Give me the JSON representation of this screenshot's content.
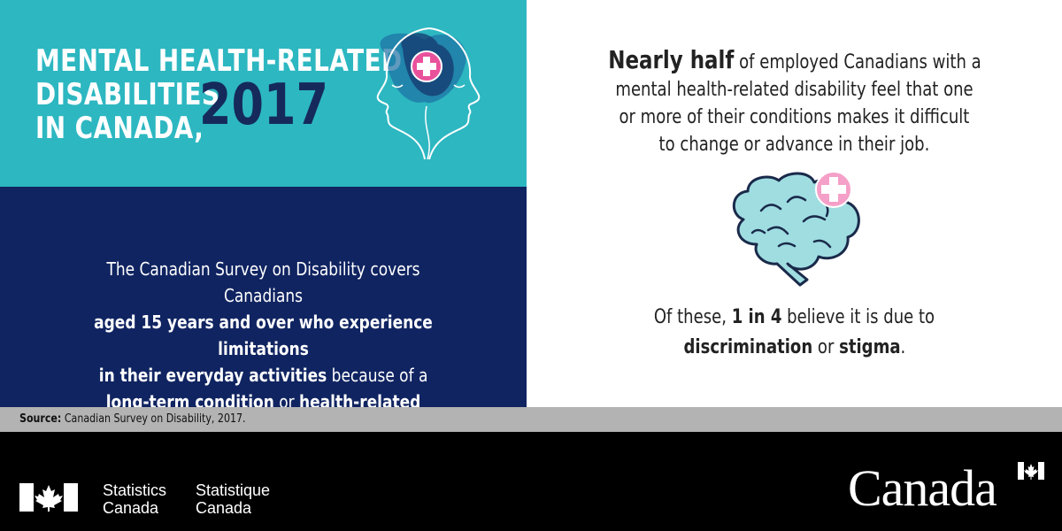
{
  "title": {
    "lines": [
      "MENTAL HEALTH-RELATED",
      "DISABILITIES",
      "IN CANADA,"
    ],
    "year": "2017"
  },
  "survey": {
    "p1": "The Canadian Survey on Disability covers Canadians",
    "b1": "aged 15 years and over who experience limitations",
    "b2": "in their everyday activities",
    "p2": " because of a",
    "b3": "long-term condition",
    "p3": " or ",
    "b4": "health-related problem",
    "p4": "."
  },
  "finding": {
    "bold": "Nearly half",
    "l1": " of employed Canadians with a",
    "l2": "mental health-related disability feel that one",
    "l3": "or more of their conditions makes it difficult",
    "l4": "to change or advance in their job."
  },
  "stat": {
    "pre": "Of these, ",
    "bold": "1 in 4",
    "post": " believe it is due to",
    "b2": "discrimination",
    "mid": " or ",
    "b3": "stigma",
    "end": "."
  },
  "source": {
    "label": "Source:",
    "text": " Canadian Survey on Disability, 2017."
  },
  "footer": {
    "en": [
      "Statistics",
      "Canada"
    ],
    "fr": [
      "Statistique",
      "Canada"
    ],
    "wordmark": "Canada"
  },
  "colors": {
    "teal": "#2db7c1",
    "navy": "#102461",
    "pink": "#e9519b",
    "dark_blue": "#152a5a",
    "brain": "#9fdde1"
  },
  "icons": [
    "heads-profile-icon",
    "medical-cross-icon",
    "brain-icon",
    "maple-leaf-icon"
  ]
}
